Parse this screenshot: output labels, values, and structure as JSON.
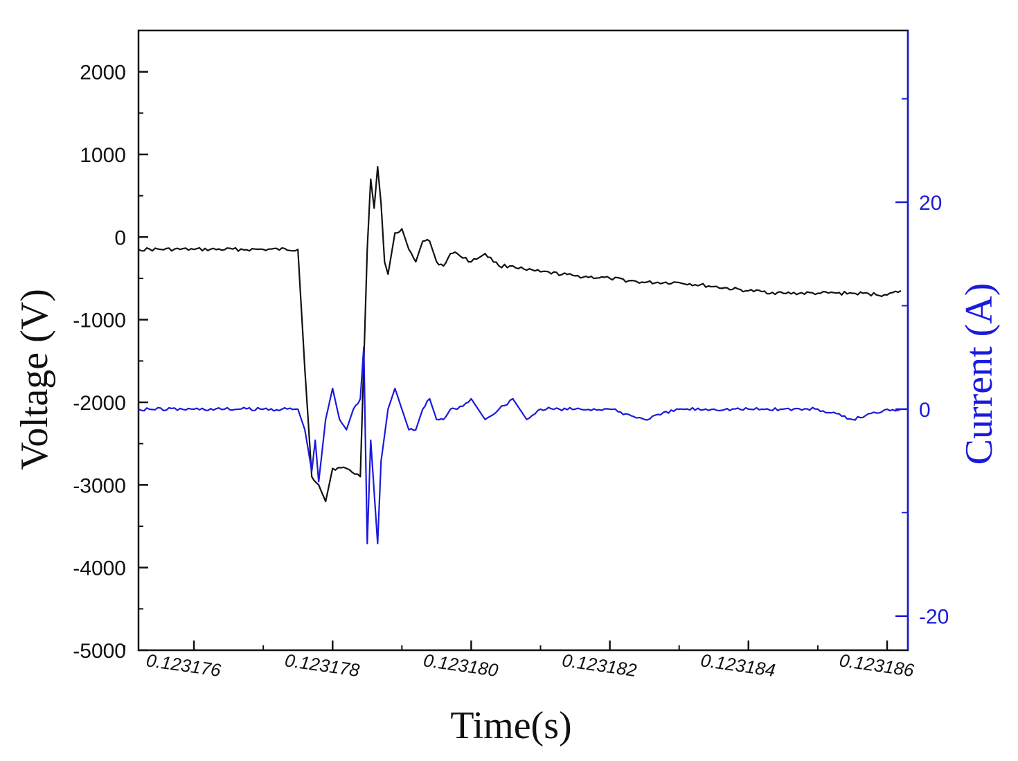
{
  "chart_data": {
    "type": "line",
    "xlabel": "Time(s)",
    "ylabel": "Voltage (V)",
    "y2label": "Current (A)",
    "xlim": [
      0.1231752,
      0.1231863
    ],
    "ylim": [
      -5000,
      2500
    ],
    "y2lim": [
      -23.3,
      36.6
    ],
    "x_ticks": [
      "0.123176",
      "0.123178",
      "0.123180",
      "0.123182",
      "0.123184",
      "0.123186"
    ],
    "x_tick_values": [
      0.123176,
      0.123178,
      0.12318,
      0.123182,
      0.123184,
      0.123186
    ],
    "y_ticks": [
      "2000",
      "1000",
      "0",
      "-1000",
      "-2000",
      "-3000",
      "-4000",
      "-5000"
    ],
    "y_tick_values": [
      2000,
      1000,
      0,
      -1000,
      -2000,
      -3000,
      -4000,
      -5000
    ],
    "y2_ticks": [
      "20",
      "0",
      "-20"
    ],
    "y2_tick_values": [
      20,
      0,
      -20
    ],
    "grid": false,
    "legend": "none",
    "colors": {
      "voltage": "#111111",
      "current": "#1a1adb",
      "axis": "#111111",
      "right_axis": "#1a1adb"
    },
    "series": [
      {
        "axis": "left",
        "color": "#111111",
        "x": [
          0.1231752,
          0.123176,
          0.123177,
          0.1231775,
          0.1231776,
          0.1231777,
          0.1231778,
          0.1231779,
          0.123178,
          0.1231782,
          0.1231784,
          0.1231785,
          0.12317855,
          0.1231786,
          0.12317865,
          0.1231787,
          0.12317875,
          0.1231788,
          0.1231789,
          0.123179,
          0.1231791,
          0.1231792,
          0.1231793,
          0.1231794,
          0.1231795,
          0.1231796,
          0.1231797,
          0.1231798,
          0.12318,
          0.1231802,
          0.1231804,
          0.1231806,
          0.1231808,
          0.123181,
          0.1231815,
          0.123182,
          0.1231825,
          0.123183,
          0.1231835,
          0.123184,
          0.1231845,
          0.123185,
          0.1231855,
          0.123186,
          0.1231862
        ],
        "y": [
          -150,
          -150,
          -150,
          -150,
          -1600,
          -2900,
          -3000,
          -3200,
          -2800,
          -2800,
          -2900,
          -150,
          700,
          350,
          850,
          400,
          -300,
          -450,
          50,
          100,
          -150,
          -300,
          -50,
          -50,
          -300,
          -350,
          -200,
          -200,
          -300,
          -200,
          -350,
          -350,
          -400,
          -420,
          -470,
          -500,
          -550,
          -550,
          -600,
          -650,
          -680,
          -680,
          -680,
          -700,
          -650
        ]
      },
      {
        "axis": "right",
        "color": "#1a1adb",
        "x": [
          0.1231752,
          0.123176,
          0.123177,
          0.1231775,
          0.1231776,
          0.1231777,
          0.12317775,
          0.1231778,
          0.1231779,
          0.123178,
          0.1231781,
          0.1231782,
          0.1231783,
          0.1231784,
          0.12317845,
          0.1231785,
          0.12317855,
          0.1231786,
          0.12317865,
          0.1231787,
          0.1231788,
          0.1231789,
          0.123179,
          0.1231791,
          0.1231792,
          0.1231793,
          0.1231794,
          0.1231795,
          0.1231796,
          0.1231797,
          0.1231798,
          0.12318,
          0.1231802,
          0.1231804,
          0.1231806,
          0.1231808,
          0.123181,
          0.1231815,
          0.123182,
          0.1231825,
          0.123183,
          0.1231835,
          0.123184,
          0.1231845,
          0.123185,
          0.1231855,
          0.123186,
          0.1231862
        ],
        "y": [
          0,
          0,
          0,
          0,
          -2,
          -6,
          -3,
          -7,
          -1,
          2,
          -1,
          -2,
          0,
          1,
          6,
          -13,
          -3,
          -8,
          -13,
          -5,
          0,
          2,
          0,
          -2,
          -2,
          0,
          1,
          -1,
          -1,
          0,
          0,
          1,
          -1,
          0,
          1,
          -1,
          0,
          0,
          0,
          -1,
          0,
          0,
          0,
          0,
          0,
          -1,
          0,
          0
        ]
      }
    ]
  }
}
